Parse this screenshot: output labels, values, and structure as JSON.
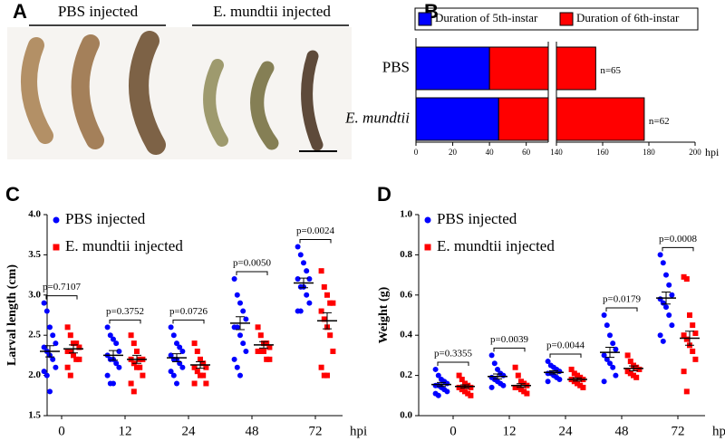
{
  "photo": {
    "panel": "A",
    "labels": [
      "PBS injected",
      "E. mundtii injected"
    ]
  },
  "chart_data": [
    {
      "panel": "B",
      "type": "stacked_barh",
      "categories": [
        "PBS",
        "E. mundtii"
      ],
      "series": [
        {
          "name": "Duration of 5th-instar",
          "color": "#0000ff",
          "values": [
            40,
            45
          ]
        },
        {
          "name": "Duration of 6th-instar",
          "color": "#ff0000",
          "values": [
            117,
            133
          ]
        }
      ],
      "annotations": [
        "n=65",
        "n=62"
      ],
      "xlim": [
        0,
        200
      ],
      "xbreak": [
        72,
        140
      ],
      "xticks": [
        0,
        20,
        40,
        60,
        140,
        160,
        180,
        200
      ],
      "xlabel": "hpi"
    },
    {
      "panel": "C",
      "type": "strip",
      "ylabel": "Larval length (cm)",
      "xlabel": "hpi",
      "categories": [
        0,
        12,
        24,
        48,
        72
      ],
      "ylim": [
        1.5,
        4.0
      ],
      "yticks": [
        1.5,
        {
          "value": 2,
          "label": "2.0"
        },
        2.5,
        {
          "value": 3,
          "label": "3.0"
        },
        3.5,
        {
          "value": 4,
          "label": "4.0"
        }
      ],
      "series": [
        {
          "name": "PBS injected",
          "color": "#0000ff",
          "marker": "circle",
          "points": [
            [
              2.9,
              2.8,
              2.6,
              2.5,
              2.4,
              2.35,
              2.3,
              2.25,
              2.2,
              2.1,
              2.05,
              2.0,
              1.8
            ],
            [
              2.6,
              2.5,
              2.45,
              2.4,
              2.3,
              2.25,
              2.2,
              2.2,
              2.15,
              2.1,
              2.0,
              1.9,
              1.9
            ],
            [
              2.6,
              2.5,
              2.4,
              2.35,
              2.3,
              2.25,
              2.2,
              2.2,
              2.15,
              2.1,
              2.05,
              2.0,
              1.9
            ],
            [
              3.2,
              3.0,
              2.9,
              2.8,
              2.7,
              2.6,
              2.6,
              2.5,
              2.4,
              2.3,
              2.2,
              2.1,
              2.0
            ],
            [
              3.6,
              3.5,
              3.4,
              3.3,
              3.2,
              3.2,
              3.1,
              3.1,
              3.0,
              2.9,
              2.8,
              2.8
            ]
          ],
          "means": [
            2.3,
            2.25,
            2.22,
            2.65,
            3.15
          ],
          "sem": [
            0.07,
            0.06,
            0.05,
            0.08,
            0.06
          ]
        },
        {
          "name": "E. mundtii  injected",
          "color": "#ff0000",
          "marker": "square",
          "points": [
            [
              2.6,
              2.5,
              2.4,
              2.4,
              2.35,
              2.3,
              2.3,
              2.25,
              2.2,
              2.2,
              2.1,
              2.0
            ],
            [
              2.5,
              2.4,
              2.3,
              2.2,
              2.2,
              2.2,
              2.15,
              2.1,
              2.1,
              2.0,
              1.9,
              1.8
            ],
            [
              2.4,
              2.3,
              2.2,
              2.15,
              2.1,
              2.1,
              2.05,
              2.0,
              2.0,
              1.9,
              1.9
            ],
            [
              2.6,
              2.5,
              2.4,
              2.4,
              2.35,
              2.3,
              2.3,
              2.3,
              2.2,
              2.2
            ],
            [
              3.3,
              3.1,
              3.0,
              2.9,
              2.9,
              2.8,
              2.7,
              2.6,
              2.5,
              2.3,
              2.1,
              2.0,
              2.0
            ]
          ],
          "means": [
            2.33,
            2.2,
            2.13,
            2.38,
            2.68
          ],
          "sem": [
            0.05,
            0.05,
            0.04,
            0.04,
            0.1
          ]
        }
      ],
      "annotations": [
        "p=0.7107",
        "p=0.3752",
        "p=0.0726",
        "p=0.0050",
        "p=0.0024"
      ]
    },
    {
      "panel": "D",
      "type": "strip",
      "ylabel": "Weight (g)",
      "xlabel": "hpi",
      "categories": [
        0,
        12,
        24,
        48,
        72
      ],
      "ylim": [
        0,
        1.0
      ],
      "yticks": [
        {
          "value": 0,
          "label": "0.0"
        },
        0.2,
        0.4,
        0.6,
        0.8,
        {
          "value": 1,
          "label": "1.0"
        }
      ],
      "series": [
        {
          "name": "PBS injected",
          "color": "#0000ff",
          "marker": "circle",
          "points": [
            [
              0.23,
              0.2,
              0.18,
              0.17,
              0.16,
              0.15,
              0.15,
              0.14,
              0.13,
              0.12,
              0.11,
              0.1
            ],
            [
              0.3,
              0.26,
              0.23,
              0.21,
              0.2,
              0.19,
              0.18,
              0.17,
              0.16,
              0.15,
              0.14
            ],
            [
              0.27,
              0.25,
              0.24,
              0.23,
              0.22,
              0.21,
              0.21,
              0.2,
              0.19,
              0.18,
              0.17
            ],
            [
              0.5,
              0.45,
              0.4,
              0.36,
              0.33,
              0.3,
              0.28,
              0.26,
              0.24,
              0.2,
              0.17
            ],
            [
              0.8,
              0.76,
              0.7,
              0.65,
              0.6,
              0.58,
              0.56,
              0.54,
              0.5,
              0.45,
              0.4,
              0.37
            ]
          ],
          "means": [
            0.155,
            0.195,
            0.215,
            0.315,
            0.585
          ],
          "sem": [
            0.01,
            0.012,
            0.008,
            0.025,
            0.03
          ]
        },
        {
          "name": "E. mundtii injected",
          "color": "#ff0000",
          "marker": "square",
          "points": [
            [
              0.2,
              0.18,
              0.16,
              0.15,
              0.14,
              0.14,
              0.13,
              0.12,
              0.11,
              0.1
            ],
            [
              0.24,
              0.2,
              0.17,
              0.16,
              0.15,
              0.14,
              0.14,
              0.13,
              0.12,
              0.11
            ],
            [
              0.23,
              0.21,
              0.2,
              0.19,
              0.18,
              0.18,
              0.17,
              0.16,
              0.15,
              0.14
            ],
            [
              0.3,
              0.27,
              0.25,
              0.24,
              0.23,
              0.22,
              0.21,
              0.2,
              0.19
            ],
            [
              0.69,
              0.68,
              0.5,
              0.45,
              0.41,
              0.4,
              0.38,
              0.35,
              0.32,
              0.28,
              0.22,
              0.12
            ]
          ],
          "means": [
            0.145,
            0.15,
            0.18,
            0.235,
            0.385
          ],
          "sem": [
            0.008,
            0.009,
            0.008,
            0.012,
            0.035
          ]
        }
      ],
      "annotations": [
        "p=0.3355",
        "p=0.0039",
        "p=0.0044",
        "p=0.0179",
        "p=0.0008"
      ]
    }
  ]
}
